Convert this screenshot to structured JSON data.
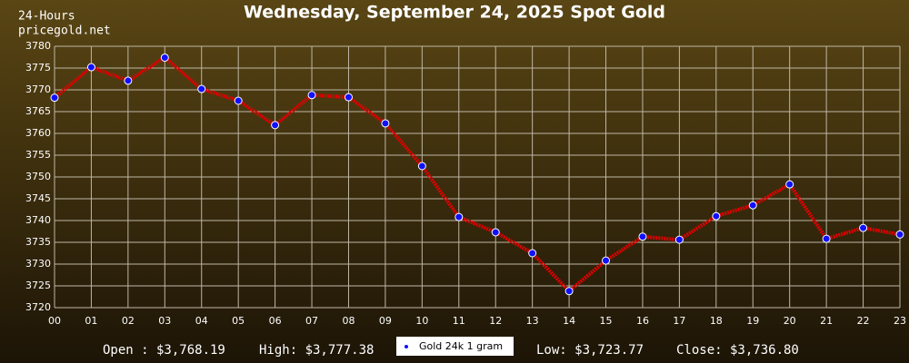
{
  "chart_data": {
    "type": "line",
    "title": "Wednesday, September 24, 2025 Spot Gold",
    "subtitle": [
      "24-Hours",
      "pricegold.net"
    ],
    "categories": [
      "00",
      "01",
      "02",
      "03",
      "04",
      "05",
      "06",
      "07",
      "08",
      "09",
      "10",
      "11",
      "12",
      "13",
      "14",
      "15",
      "16",
      "17",
      "18",
      "19",
      "20",
      "21",
      "22",
      "23"
    ],
    "series": [
      {
        "name": "Gold 24k 1 gram",
        "color": "#e00000",
        "marker_color": "#1010ff",
        "values": [
          3768.2,
          3775.2,
          3772.1,
          3777.4,
          3770.2,
          3767.5,
          3761.9,
          3768.8,
          3768.3,
          3762.3,
          3752.5,
          3740.8,
          3737.3,
          3732.5,
          3723.8,
          3730.8,
          3736.3,
          3735.6,
          3741.0,
          3743.5,
          3748.3,
          3735.8,
          3738.3,
          3736.8
        ]
      }
    ],
    "ylim": [
      3720,
      3780
    ],
    "yticks": [
      3720,
      3725,
      3730,
      3735,
      3740,
      3745,
      3750,
      3755,
      3760,
      3765,
      3770,
      3775,
      3780
    ],
    "grid": true,
    "annotations": [
      "Open : $3,768.19",
      "High: $3,777.38",
      "Low: $3,723.77",
      "Close: $3,736.80"
    ]
  }
}
